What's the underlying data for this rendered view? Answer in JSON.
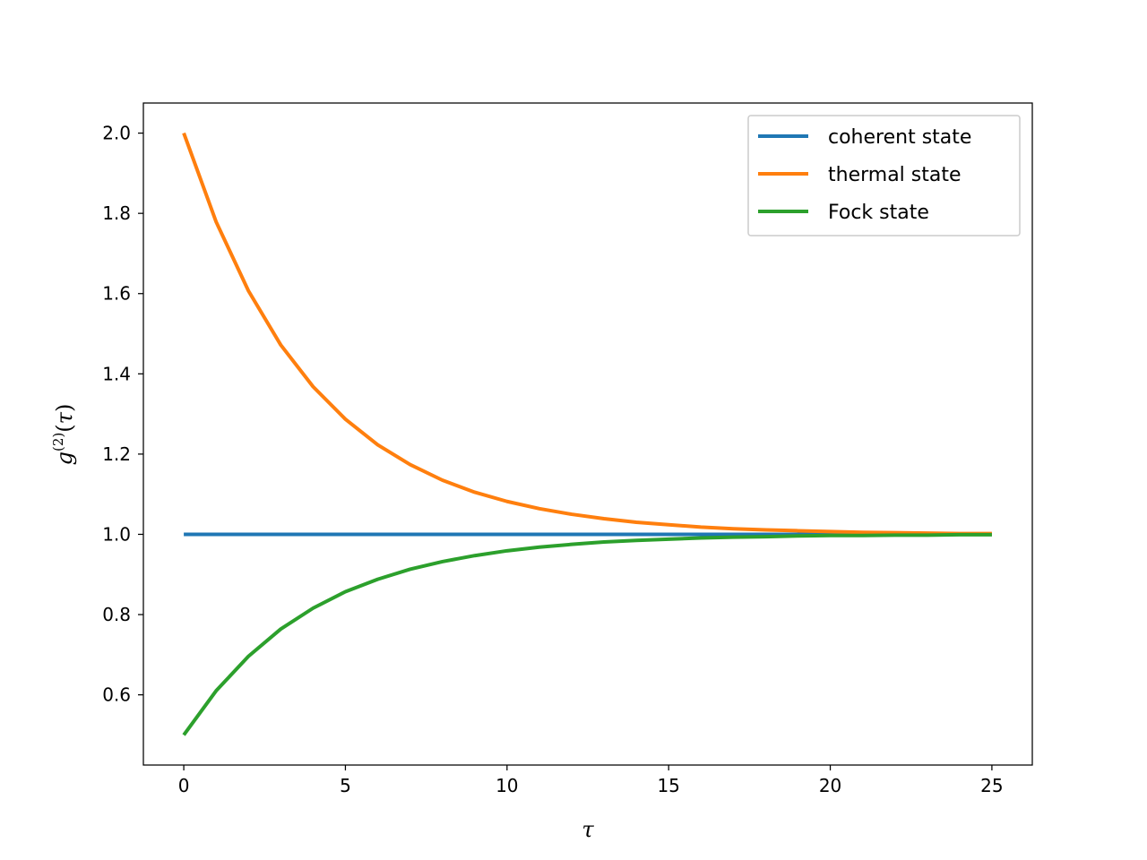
{
  "chart_data": {
    "type": "line",
    "xlabel": "τ",
    "ylabel": {
      "base": "g",
      "superscript": "(2)",
      "open": "(",
      "arg": "τ",
      "close": ")"
    },
    "xlim": [
      -1.25,
      26.25
    ],
    "ylim": [
      0.425,
      2.075
    ],
    "xticks": [
      0,
      5,
      10,
      15,
      20,
      25
    ],
    "xtick_labels": [
      "0",
      "5",
      "10",
      "15",
      "20",
      "25"
    ],
    "yticks": [
      0.6,
      0.8,
      1.0,
      1.2,
      1.4,
      1.6,
      1.8,
      2.0
    ],
    "ytick_labels": [
      "0.6",
      "0.8",
      "1.0",
      "1.2",
      "1.4",
      "1.6",
      "1.8",
      "2.0"
    ],
    "grid": false,
    "legend_position": "top-right",
    "x": [
      0,
      1,
      2,
      3,
      4,
      5,
      6,
      7,
      8,
      9,
      10,
      11,
      12,
      13,
      14,
      15,
      16,
      17,
      18,
      19,
      20,
      21,
      22,
      23,
      24,
      25
    ],
    "series": [
      {
        "name": "coherent state",
        "color": "#1f77b4",
        "values": [
          1,
          1,
          1,
          1,
          1,
          1,
          1,
          1,
          1,
          1,
          1,
          1,
          1,
          1,
          1,
          1,
          1,
          1,
          1,
          1,
          1,
          1,
          1,
          1,
          1,
          1
        ]
      },
      {
        "name": "thermal state",
        "color": "#ff7f0e",
        "values": [
          2.0,
          1.779,
          1.607,
          1.472,
          1.368,
          1.287,
          1.223,
          1.174,
          1.135,
          1.105,
          1.082,
          1.064,
          1.05,
          1.039,
          1.03,
          1.024,
          1.018,
          1.014,
          1.011,
          1.009,
          1.007,
          1.005,
          1.004,
          1.003,
          1.002,
          1.002
        ]
      },
      {
        "name": "Fock state",
        "color": "#2ca02c",
        "values": [
          0.5,
          0.61,
          0.696,
          0.764,
          0.816,
          0.857,
          0.888,
          0.913,
          0.932,
          0.947,
          0.959,
          0.968,
          0.975,
          0.981,
          0.985,
          0.988,
          0.991,
          0.993,
          0.994,
          0.996,
          0.997,
          0.997,
          0.998,
          0.998,
          0.999,
          0.999
        ]
      }
    ]
  }
}
